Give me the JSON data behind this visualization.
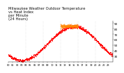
{
  "title": "Milwaukee Weather Outdoor Temperature\nvs Heat Index\nper Minute\n(24 Hours)",
  "title_fontsize": 3.8,
  "bg_color": "#ffffff",
  "line_red_color": "#ff0000",
  "line_orange_color": "#ff8800",
  "ylabel_fontsize": 3.0,
  "xlabel_fontsize": 2.5,
  "ylim": [
    20,
    95
  ],
  "yticks": [
    30,
    40,
    50,
    60,
    70,
    80,
    90
  ],
  "grid_color": "#aaaaaa",
  "n_points": 1440,
  "vline_hours": [
    4,
    8,
    12,
    16,
    20
  ]
}
